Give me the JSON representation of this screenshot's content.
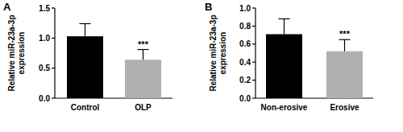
{
  "chart_data": [
    {
      "type": "bar",
      "title": "A",
      "y_label": "Relative miR-23a-3p expression",
      "categories": [
        "Control",
        "OLP"
      ],
      "values": [
        1.03,
        0.64
      ],
      "errors": [
        0.21,
        0.17
      ],
      "colors": [
        "#000000",
        "#b0b0b0"
      ],
      "ylim": [
        0,
        1.5
      ],
      "yticks": [
        {
          "value": 0,
          "label": "0.0"
        },
        0.5,
        {
          "value": 1,
          "label": "1.0"
        },
        1.5
      ],
      "annotations": [
        {
          "label": "***",
          "category": "OLP"
        }
      ]
    },
    {
      "type": "bar",
      "title": "B",
      "y_label": "Relative miR-23a-3p expression",
      "categories": [
        "Non-erosive",
        "Erosive"
      ],
      "values": [
        0.71,
        0.52
      ],
      "errors": [
        0.17,
        0.13
      ],
      "colors": [
        "#000000",
        "#b0b0b0"
      ],
      "ylim": [
        0,
        1
      ],
      "yticks": [
        {
          "value": 0,
          "label": "0.0"
        },
        0.2,
        0.4,
        0.6,
        0.8,
        {
          "value": 1,
          "label": "1.0"
        }
      ],
      "annotations": [
        {
          "label": "***",
          "category": "Erosive"
        }
      ]
    }
  ]
}
